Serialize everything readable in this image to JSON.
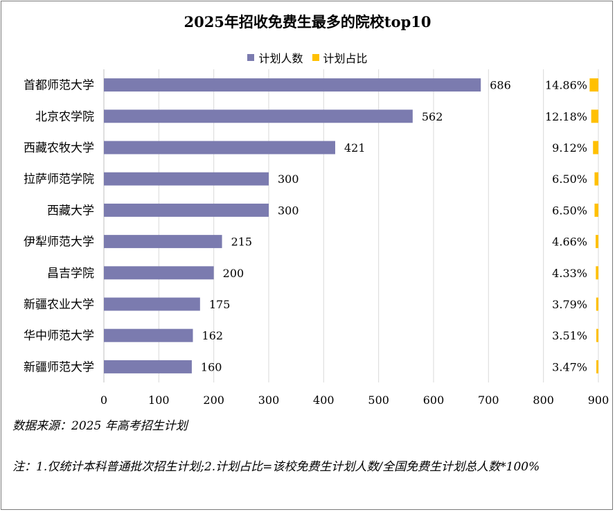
{
  "chart_data": {
    "type": "bar",
    "orientation": "horizontal",
    "title": "2025年招收免费生最多的院校top10",
    "categories": [
      "首都师范大学",
      "北京农学院",
      "西藏农牧大学",
      "拉萨师范学院",
      "西藏大学",
      "伊犁师范大学",
      "昌吉学院",
      "新疆农业大学",
      "华中师范大学",
      "新疆师范大学"
    ],
    "series": [
      {
        "name": "计划人数",
        "color": "#7B7BAF",
        "values": [
          686,
          562,
          421,
          300,
          300,
          215,
          200,
          175,
          162,
          160
        ]
      },
      {
        "name": "计划占比",
        "color": "#FFC000",
        "values": [
          14.86,
          12.18,
          9.12,
          6.5,
          6.5,
          4.66,
          4.33,
          3.79,
          3.51,
          3.47
        ]
      }
    ],
    "percent_labels": [
      "14.86%",
      "12.18%",
      "9.12%",
      "6.50%",
      "6.50%",
      "4.66%",
      "4.33%",
      "3.79%",
      "3.51%",
      "3.47%"
    ],
    "xlim": [
      0,
      900
    ],
    "xticks": [
      0,
      100,
      200,
      300,
      400,
      500,
      600,
      700,
      800,
      900
    ],
    "grid": true,
    "legend": "top-center"
  },
  "footer": {
    "source": "数据来源：2025 年高考招生计划",
    "note": "注：1.仅统计本科普通批次招生计划;2.计划占比=该校免费生计划人数/全国免费生计划总人数*100%"
  }
}
